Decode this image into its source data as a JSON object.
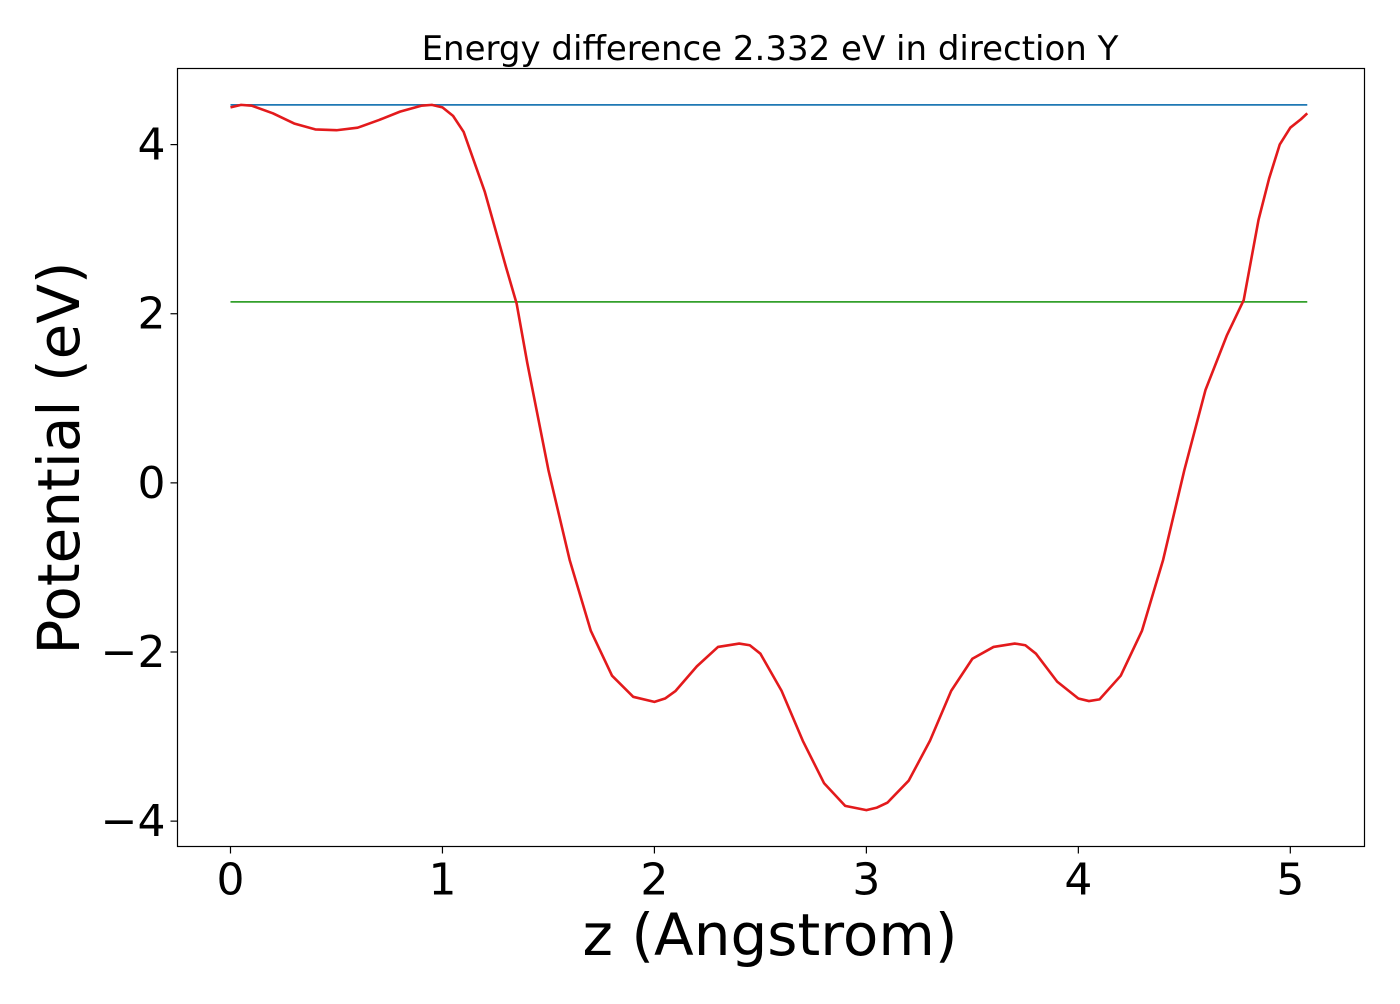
{
  "chart_data": {
    "type": "line",
    "title": "Energy difference 2.332 eV in direction Y",
    "xlabel": "z (Angstrom)",
    "ylabel": "Potential (eV)",
    "xlim": [
      -0.25,
      5.35
    ],
    "ylim": [
      -4.3,
      4.9
    ],
    "x_ticks": [
      0,
      1,
      2,
      3,
      4,
      5
    ],
    "x_tick_labels": [
      "0",
      "1",
      "2",
      "3",
      "4",
      "5"
    ],
    "y_ticks": [
      -4,
      -2,
      0,
      2,
      4
    ],
    "y_tick_labels": [
      "−4",
      "−2",
      "0",
      "2",
      "4"
    ],
    "grid": false,
    "legend": "none",
    "series": [
      {
        "color": "#e31a1c",
        "x": [
          0.0,
          0.05,
          0.1,
          0.2,
          0.3,
          0.4,
          0.5,
          0.6,
          0.7,
          0.8,
          0.9,
          0.95,
          1.0,
          1.05,
          1.1,
          1.2,
          1.3,
          1.35,
          1.4,
          1.5,
          1.6,
          1.7,
          1.8,
          1.9,
          2.0,
          2.05,
          2.1,
          2.2,
          2.3,
          2.4,
          2.45,
          2.5,
          2.6,
          2.7,
          2.8,
          2.9,
          3.0,
          3.05,
          3.1,
          3.2,
          3.3,
          3.4,
          3.5,
          3.6,
          3.7,
          3.75,
          3.8,
          3.9,
          4.0,
          4.05,
          4.1,
          4.2,
          4.3,
          4.4,
          4.5,
          4.6,
          4.7,
          4.78,
          4.85,
          4.9,
          4.95,
          5.0,
          5.05,
          5.08
        ],
        "y": [
          4.44,
          4.47,
          4.46,
          4.37,
          4.25,
          4.18,
          4.17,
          4.2,
          4.29,
          4.39,
          4.46,
          4.47,
          4.44,
          4.34,
          4.15,
          3.44,
          2.55,
          2.12,
          1.42,
          0.15,
          -0.91,
          -1.75,
          -2.28,
          -2.53,
          -2.59,
          -2.55,
          -2.46,
          -2.17,
          -1.94,
          -1.9,
          -1.92,
          -2.02,
          -2.46,
          -3.05,
          -3.55,
          -3.82,
          -3.87,
          -3.84,
          -3.78,
          -3.52,
          -3.05,
          -2.46,
          -2.08,
          -1.94,
          -1.9,
          -1.92,
          -2.02,
          -2.35,
          -2.55,
          -2.58,
          -2.56,
          -2.28,
          -1.75,
          -0.91,
          0.15,
          1.1,
          1.74,
          2.16,
          3.11,
          3.6,
          4.0,
          4.2,
          4.3,
          4.37
        ]
      },
      {
        "color": "#1f78b4",
        "x": [
          0.0,
          5.08
        ],
        "y": [
          4.47,
          4.47
        ]
      },
      {
        "color": "#33a02c",
        "x": [
          0.0,
          5.08
        ],
        "y": [
          2.14,
          2.14
        ]
      }
    ]
  }
}
